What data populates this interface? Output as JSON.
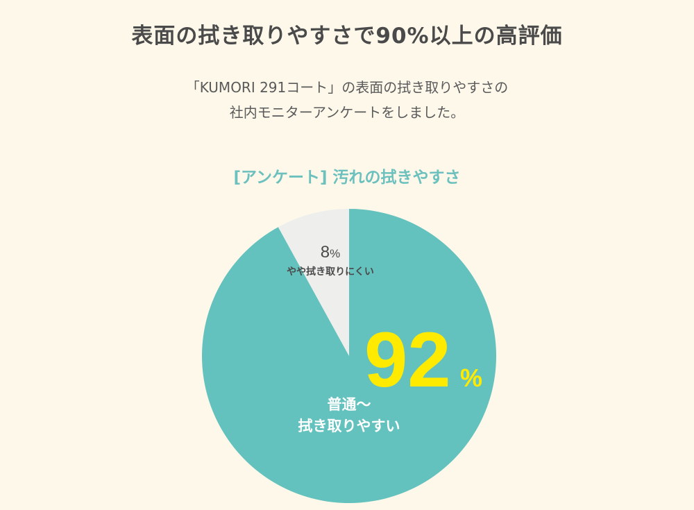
{
  "page": {
    "title": "表面の拭き取りやすさで90%以上の高評価",
    "intro_lines": [
      "「KUMORI 291コート」の表面の拭き取りやすさの",
      "社内モニターアンケートをしました。"
    ]
  },
  "colors": {
    "background": "#fdf8ea",
    "teal": "#64c2be",
    "light_gray": "#eeeeec",
    "accent_yellow": "#ffea00",
    "title_text": "#4a4a4a"
  },
  "chart_data": {
    "type": "pie",
    "title": "[アンケート] 汚れの拭きやすさ",
    "slices": [
      {
        "name": "普通～拭き取りやすい",
        "label_lines": [
          "普通～",
          "拭き取りやすい"
        ],
        "value": 92,
        "value_label": "92",
        "unit": "%",
        "color": "#64c2be"
      },
      {
        "name": "やや拭き取りにくい",
        "label_lines": [
          "やや拭き取りにくい"
        ],
        "value": 8,
        "value_label": "8",
        "unit": "%",
        "color": "#eeeeec"
      }
    ]
  }
}
